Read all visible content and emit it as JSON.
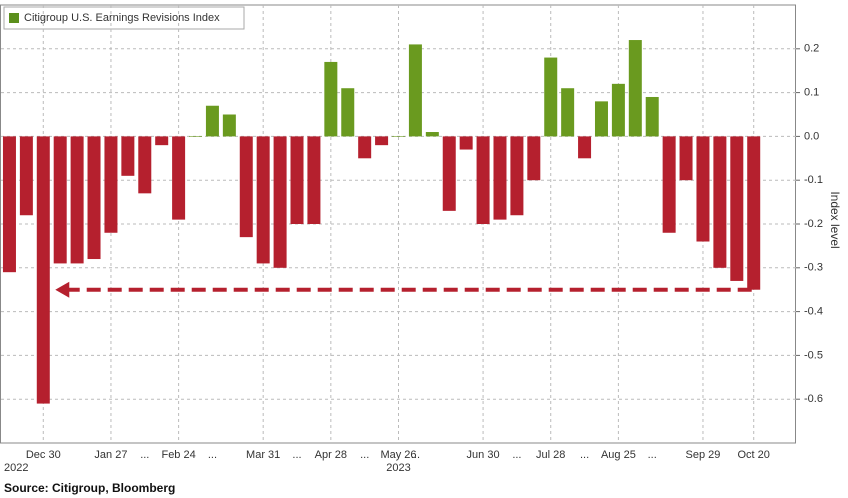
{
  "chart_data": {
    "type": "bar",
    "legend": "Citigroup U.S. Earnings Revisions Index",
    "legend_color": "#5b8f1c",
    "y_axis_label": "Index level",
    "source": "Source: Citigroup, Bloomberg",
    "positive_color": "#6a9a1f",
    "negative_color": "#b5202e",
    "categories": [
      null,
      null,
      "Dec 30",
      null,
      null,
      null,
      "Jan 27",
      null,
      "...",
      null,
      "Feb 24",
      null,
      "...",
      null,
      null,
      "Mar 31",
      null,
      "...",
      null,
      "Apr 28",
      null,
      "...",
      null,
      "May 26",
      "...",
      null,
      null,
      null,
      "Jun 30",
      null,
      "...",
      null,
      "Jul 28",
      null,
      "...",
      null,
      "Aug 25",
      null,
      "...",
      null,
      null,
      "Sep 29",
      null,
      null,
      "Oct 20"
    ],
    "year_labels": [
      null,
      null,
      "2022",
      null,
      null,
      null,
      null,
      null,
      null,
      null,
      null,
      null,
      null,
      null,
      null,
      null,
      null,
      null,
      null,
      null,
      null,
      null,
      null,
      "2023",
      null,
      null,
      null,
      null,
      null,
      null,
      null,
      null,
      null,
      null,
      null,
      null,
      null,
      null,
      null,
      null,
      null,
      null,
      null,
      null,
      null
    ],
    "values": [
      -0.31,
      -0.18,
      -0.61,
      -0.29,
      -0.29,
      -0.28,
      -0.22,
      -0.09,
      -0.13,
      -0.02,
      -0.19,
      0.0,
      0.07,
      0.05,
      -0.23,
      -0.29,
      -0.3,
      -0.2,
      -0.2,
      0.17,
      0.11,
      -0.05,
      -0.02,
      0.0,
      0.21,
      0.01,
      -0.17,
      -0.03,
      -0.2,
      -0.19,
      -0.18,
      -0.1,
      0.18,
      0.11,
      -0.05,
      0.08,
      0.12,
      0.22,
      0.09,
      -0.22,
      -0.1,
      -0.24,
      -0.3,
      -0.33,
      -0.35
    ],
    "ylim": [
      -0.7,
      0.3
    ],
    "yticks": [
      0.2,
      0.1,
      {
        "value": 0,
        "label": "0.0"
      },
      -0.1,
      -0.2,
      -0.3,
      -0.4,
      -0.5,
      -0.6
    ],
    "grid": true
  }
}
